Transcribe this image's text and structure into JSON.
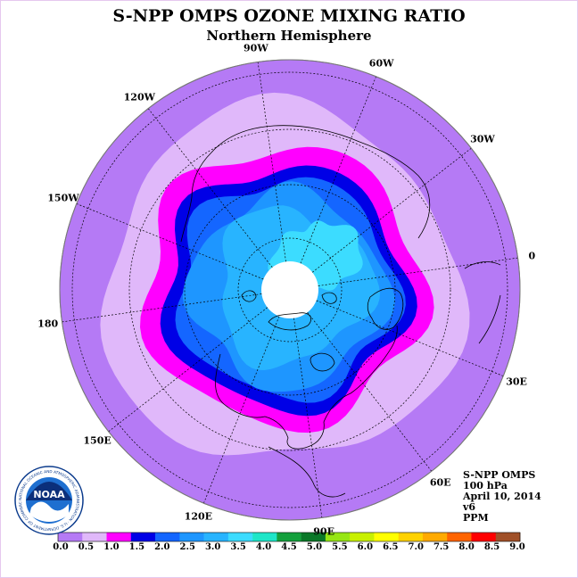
{
  "title": "S-NPP OMPS OZONE MIXING RATIO",
  "subtitle": "Northern Hemisphere",
  "longitude_labels": [
    {
      "text": "90E",
      "lon": 90
    },
    {
      "text": "60E",
      "lon": 60
    },
    {
      "text": "30E",
      "lon": 30
    },
    {
      "text": "0",
      "lon": 0
    },
    {
      "text": "30W",
      "lon": -30
    },
    {
      "text": "60W",
      "lon": -60
    },
    {
      "text": "90W",
      "lon": -90
    },
    {
      "text": "120W",
      "lon": -120
    },
    {
      "text": "150W",
      "lon": -150
    },
    {
      "text": "180",
      "lon": 180
    },
    {
      "text": "150E",
      "lon": 150
    },
    {
      "text": "120E",
      "lon": 120
    }
  ],
  "info": {
    "instrument": "S-NPP OMPS",
    "level": "100 hPa",
    "date": "April 10, 2014",
    "version": "v6",
    "units": "PPM"
  },
  "logo": {
    "text": "NOAA",
    "ring_text": "NATIONAL OCEANIC AND ATMOSPHERIC ADMINISTRATION · U.S. DEPARTMENT OF COMMERCE"
  },
  "colorbar": {
    "labels": [
      "0.0",
      "0.5",
      "1.0",
      "1.5",
      "2.0",
      "2.5",
      "3.0",
      "3.5",
      "4.0",
      "4.5",
      "5.0",
      "5.5",
      "6.0",
      "6.5",
      "7.0",
      "7.5",
      "8.0",
      "8.5",
      "9.0"
    ],
    "colors": [
      "#b57af5",
      "#e0b8fa",
      "#ff00ff",
      "#0000e6",
      "#1466ff",
      "#1e96ff",
      "#28b4ff",
      "#3cdcff",
      "#1ee6c8",
      "#14a03c",
      "#0a7828",
      "#96e614",
      "#c8f000",
      "#ffff00",
      "#ffd200",
      "#ffaa00",
      "#ff6400",
      "#ff0000",
      "#a05028"
    ]
  },
  "colors": {
    "background_field": "#b57af5",
    "no_data": "#ffffff",
    "coastline": "#000000"
  }
}
